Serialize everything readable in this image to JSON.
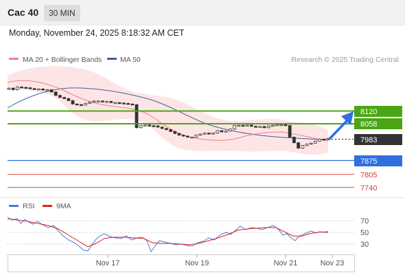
{
  "header": {
    "instrument": "Cac 40",
    "timeframe": "30 MIN"
  },
  "timestamp": "Monday, November 24, 2025 8:18:32 AM CET",
  "legend": {
    "ma20_bollinger": "MA 20 + Bollinger Bands",
    "ma50": "MA 50",
    "ma20_color": "#f08080",
    "ma50_color": "#3a5fa0"
  },
  "credit": "Research © 2025 Trading Central",
  "levels": [
    {
      "value": 8120,
      "label": "8120",
      "kind": "resistance",
      "color": "#4aa614"
    },
    {
      "value": 8058,
      "label": "8058",
      "kind": "resistance",
      "color": "#4aa614"
    },
    {
      "value": 7983,
      "label": "7983",
      "kind": "last",
      "color": "#333333"
    },
    {
      "value": 7875,
      "label": "7875",
      "kind": "pivot",
      "color": "#2f6fe0"
    },
    {
      "value": 7805,
      "label": "7805",
      "kind": "support",
      "color": "#e05050"
    },
    {
      "value": 7740,
      "label": "7740",
      "kind": "support",
      "color": "#e05050"
    }
  ],
  "rsi_legend": {
    "rsi": "RSI",
    "ma9": "9MA",
    "rsi_color": "#4a78d8",
    "ma9_color": "#e02020"
  },
  "rsi_levels": [
    "70",
    "50",
    "30"
  ],
  "x_ticks": [
    "Nov 17",
    "Nov 19",
    "Nov 21",
    "Nov 23"
  ],
  "chart_data": {
    "type": "candlestick",
    "x_ticks": [
      "Nov 17",
      "Nov 19",
      "Nov 21",
      "Nov 23"
    ],
    "price_close_approx": [
      8234,
      8226,
      8240,
      8238,
      8236,
      8232,
      8230,
      8230,
      8225,
      8226,
      8215,
      8198,
      8188,
      8182,
      8172,
      8155,
      8152,
      8150,
      8158,
      8165,
      8170,
      8170,
      8168,
      8168,
      8162,
      8162,
      8160,
      8158,
      8155,
      8152,
      8037,
      8047,
      8050,
      8047,
      8046,
      8040,
      8033,
      8027,
      8018,
      8008,
      8000,
      7995,
      7990,
      7990,
      8000,
      8005,
      8010,
      8007,
      8010,
      8022,
      8016,
      8020,
      8030,
      8048,
      8049,
      8047,
      8050,
      8044,
      8040,
      8043,
      8037,
      8046,
      8049,
      8052,
      8052,
      8048,
      7990,
      7962,
      7935,
      7948,
      7955,
      7960,
      7970,
      7980,
      7978,
      7983
    ],
    "price_axis_labels": [
      "8120",
      "8058",
      "7983",
      "7875",
      "7805",
      "7740"
    ],
    "rsi": {
      "levels": [
        70,
        50,
        30
      ]
    }
  }
}
